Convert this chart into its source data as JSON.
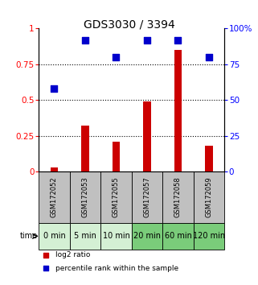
{
  "title": "GDS3030 / 3394",
  "categories": [
    "GSM172052",
    "GSM172053",
    "GSM172055",
    "GSM172057",
    "GSM172058",
    "GSM172059"
  ],
  "time_labels": [
    "0 min",
    "5 min",
    "10 min",
    "20 min",
    "60 min",
    "120 min"
  ],
  "log2_ratio": [
    0.03,
    0.32,
    0.21,
    0.49,
    0.85,
    0.18
  ],
  "percentile_rank": [
    58,
    92,
    80,
    92,
    92,
    80
  ],
  "bar_color": "#cc0000",
  "dot_color": "#0000cc",
  "ylim_left": [
    0,
    1.0
  ],
  "ylim_right": [
    0,
    100
  ],
  "yticks_left": [
    0,
    0.25,
    0.5,
    0.75,
    1.0
  ],
  "ytick_labels_left": [
    "0",
    "0.25",
    "0.5",
    "0.75",
    "1"
  ],
  "yticks_right": [
    0,
    25,
    50,
    75,
    100
  ],
  "ytick_labels_right": [
    "0",
    "25",
    "50",
    "75",
    "100%"
  ],
  "dotted_lines": [
    0.25,
    0.5,
    0.75
  ],
  "time_bg_colors_light": "#d4f0d4",
  "time_bg_colors_dark": "#7acc7a",
  "time_green_threshold": 3,
  "bar_width": 0.25,
  "dot_size": 35,
  "legend_log2": "log2 ratio",
  "legend_pct": "percentile rank within the sample",
  "title_fontsize": 10,
  "tick_fontsize": 7.5,
  "cat_box_color": "#c0c0c0",
  "time_label_fontsize": 7
}
